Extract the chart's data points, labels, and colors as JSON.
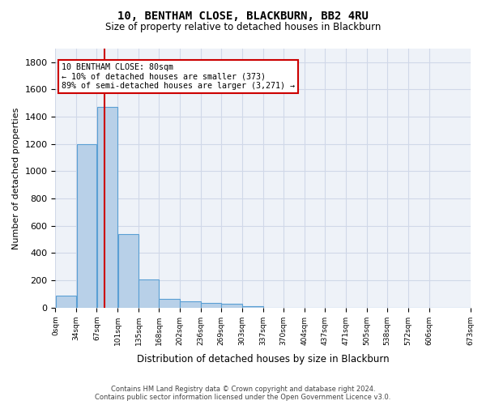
{
  "title": "10, BENTHAM CLOSE, BLACKBURN, BB2 4RU",
  "subtitle": "Size of property relative to detached houses in Blackburn",
  "xlabel": "Distribution of detached houses by size in Blackburn",
  "ylabel": "Number of detached properties",
  "footer_line1": "Contains HM Land Registry data © Crown copyright and database right 2024.",
  "footer_line2": "Contains public sector information licensed under the Open Government Licence v3.0.",
  "bar_values": [
    85,
    1200,
    1470,
    540,
    205,
    65,
    48,
    35,
    28,
    12,
    0,
    0,
    0,
    0,
    0,
    0,
    0,
    0,
    0
  ],
  "bin_edges": [
    0,
    34,
    67,
    101,
    135,
    168,
    202,
    236,
    269,
    303,
    337,
    370,
    404,
    437,
    471,
    505,
    538,
    572,
    606,
    673
  ],
  "tick_labels": [
    "0sqm",
    "34sqm",
    "67sqm",
    "101sqm",
    "135sqm",
    "168sqm",
    "202sqm",
    "236sqm",
    "269sqm",
    "303sqm",
    "337sqm",
    "370sqm",
    "404sqm",
    "437sqm",
    "471sqm",
    "505sqm",
    "538sqm",
    "572sqm",
    "606sqm",
    "673sqm"
  ],
  "bar_color": "#b8d0e8",
  "bar_edge_color": "#5a9fd4",
  "grid_color": "#d0d8e8",
  "background_color": "#eef2f8",
  "property_size": 80,
  "property_label": "10 BENTHAM CLOSE: 80sqm",
  "annotation_line1": "← 10% of detached houses are smaller (373)",
  "annotation_line2": "89% of semi-detached houses are larger (3,271) →",
  "vline_color": "#cc0000",
  "annotation_box_color": "#cc0000",
  "ylim": [
    0,
    1900
  ],
  "yticks": [
    0,
    200,
    400,
    600,
    800,
    1000,
    1200,
    1400,
    1600,
    1800
  ]
}
